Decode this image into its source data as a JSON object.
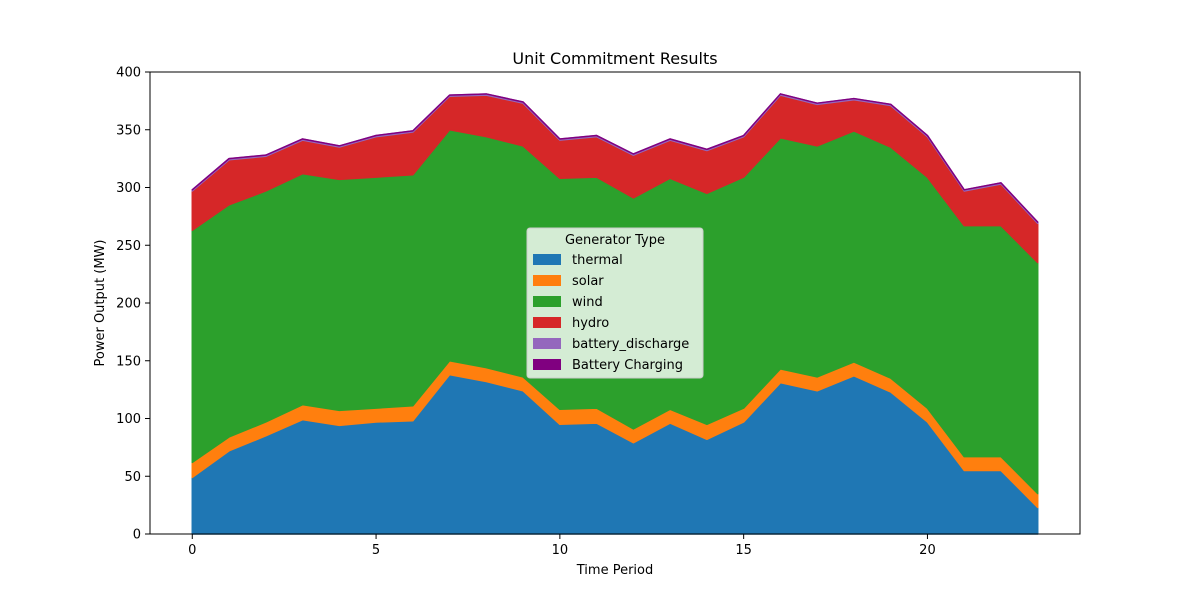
{
  "chart_data": {
    "type": "area",
    "title": "Unit Commitment Results",
    "xlabel": "Time Period",
    "ylabel": "Power Output (MW)",
    "xlim": [
      -1.15,
      24.15
    ],
    "ylim": [
      0,
      400
    ],
    "xticks": [
      0,
      5,
      10,
      15,
      20
    ],
    "yticks": [
      0,
      50,
      100,
      150,
      200,
      250,
      300,
      350,
      400
    ],
    "x": [
      0,
      1,
      2,
      3,
      4,
      5,
      6,
      7,
      8,
      9,
      10,
      11,
      12,
      13,
      14,
      15,
      16,
      17,
      18,
      19,
      20,
      21,
      22,
      23
    ],
    "grid": false,
    "legend": {
      "title": "Generator Type",
      "placement": "center"
    },
    "series": [
      {
        "name": "thermal",
        "color": "#1f77b4",
        "values": [
          49,
          72,
          85,
          99,
          94,
          97,
          98,
          138,
          132,
          124,
          95,
          96,
          79,
          96,
          82,
          97,
          131,
          124,
          137,
          123,
          97,
          55,
          55,
          23
        ]
      },
      {
        "name": "solar",
        "color": "#ff7f0e",
        "values": [
          13,
          12,
          12,
          13,
          13,
          12,
          13,
          12,
          12,
          12,
          13,
          13,
          12,
          12,
          13,
          12,
          12,
          12,
          12,
          12,
          12,
          12,
          12,
          12
        ]
      },
      {
        "name": "wind",
        "color": "#2ca02c",
        "values": [
          201,
          201,
          200,
          200,
          200,
          200,
          200,
          200,
          200,
          200,
          200,
          200,
          200,
          200,
          200,
          200,
          200,
          200,
          200,
          200,
          200,
          200,
          200,
          200
        ]
      },
      {
        "name": "hydro",
        "color": "#d62728",
        "values": [
          34,
          39,
          30,
          29,
          28,
          35,
          37,
          29,
          36,
          37,
          33,
          35,
          37,
          33,
          37,
          35,
          37,
          36,
          27,
          36,
          35,
          30,
          36,
          34
        ]
      },
      {
        "name": "battery_discharge",
        "color": "#9467bd",
        "values": [
          1,
          1,
          1,
          1,
          1,
          1,
          1,
          1,
          1,
          1,
          1,
          1,
          1,
          1,
          1,
          1,
          1,
          1,
          1,
          1,
          1,
          1,
          1,
          1
        ]
      },
      {
        "name": "Battery Charging",
        "color": "#800080",
        "values": [
          0,
          0,
          0,
          0,
          0,
          0,
          0,
          0,
          0,
          0,
          0,
          0,
          0,
          0,
          0,
          0,
          0,
          0,
          0,
          0,
          0,
          0,
          0,
          0
        ]
      }
    ]
  }
}
